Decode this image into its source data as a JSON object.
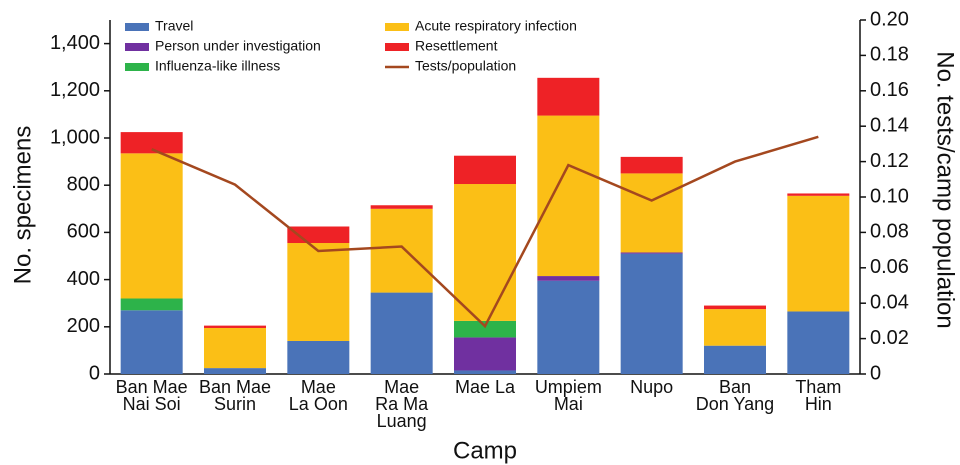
{
  "chart_data": {
    "type": "bar",
    "x_label": "Camp",
    "y_label": "No. specimens",
    "y2_label": "No. tests/camp population",
    "categories": [
      [
        "Ban Mae",
        "Nai Soi"
      ],
      [
        "Ban Mae",
        "Surin"
      ],
      [
        "Mae",
        "La Oon"
      ],
      [
        "Mae",
        "Ra Ma",
        "Luang"
      ],
      [
        "Mae La"
      ],
      [
        "Umpiem",
        "Mai"
      ],
      [
        "Nupo"
      ],
      [
        "Ban",
        "Don Yang"
      ],
      [
        "Tham",
        "Hin"
      ]
    ],
    "series": [
      {
        "name": "Travel",
        "type": "bar",
        "color": "#4a73b8",
        "values": [
          270,
          25,
          140,
          345,
          15,
          395,
          510,
          120,
          265
        ]
      },
      {
        "name": "Person under investigation",
        "type": "bar",
        "color": "#7030a0",
        "values": [
          0,
          0,
          0,
          0,
          140,
          20,
          5,
          0,
          0
        ]
      },
      {
        "name": "Influenza-like illness",
        "type": "bar",
        "color": "#2db34a",
        "values": [
          50,
          0,
          0,
          0,
          70,
          0,
          0,
          0,
          0
        ]
      },
      {
        "name": "Acute respiratory infection",
        "type": "bar",
        "color": "#fbbf16",
        "values": [
          615,
          170,
          415,
          355,
          580,
          680,
          335,
          155,
          490
        ]
      },
      {
        "name": "Resettlement",
        "type": "bar",
        "color": "#ee2226",
        "values": [
          90,
          10,
          70,
          15,
          120,
          160,
          70,
          15,
          10
        ]
      },
      {
        "name": "Tests/population",
        "type": "line",
        "axis": "y2",
        "color": "#a4481f",
        "values": [
          0.127,
          0.107,
          0.0695,
          0.072,
          0.027,
          0.118,
          0.098,
          0.12,
          0.134
        ]
      }
    ],
    "ylim": [
      0,
      1500
    ],
    "yticks": [
      0,
      200,
      400,
      600,
      800,
      {
        "value": 1000,
        "label": "1,000"
      },
      {
        "value": 1200,
        "label": "1,200"
      },
      {
        "value": 1400,
        "label": "1,400"
      }
    ],
    "y2lim": [
      0,
      0.2
    ],
    "y2ticks": [
      0,
      0.02,
      0.04,
      0.06,
      0.08,
      {
        "value": 0.1,
        "label": "0.10"
      },
      0.12,
      0.14,
      0.16,
      0.18,
      {
        "value": 0.2,
        "label": "0.20"
      }
    ],
    "stacked": true,
    "grid": false
  }
}
